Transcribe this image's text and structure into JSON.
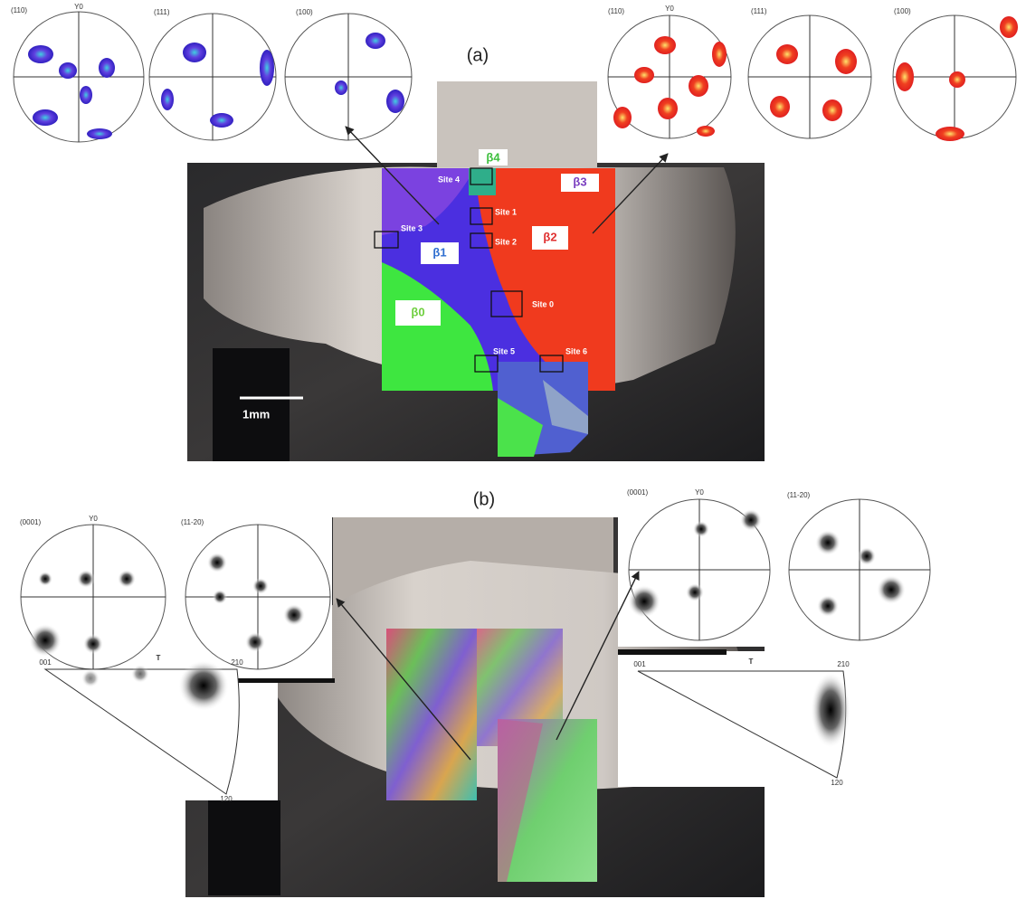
{
  "panel_a": {
    "label": "(a)",
    "left_pole_figures": [
      "(110)",
      "(111)",
      "(100)"
    ],
    "left_axis_label": "Y0",
    "right_pole_figures": [
      "(110)",
      "(111)",
      "(100)"
    ],
    "right_axis_label": "Y0",
    "grains": [
      "β4",
      "β3",
      "β1",
      "β2",
      "β0"
    ],
    "sites": [
      "Site 4",
      "Site 1",
      "Site 2",
      "Site 3",
      "Site 0",
      "Site 5",
      "Site 6"
    ],
    "scale_bar": "1mm"
  },
  "panel_b": {
    "label": "(b)",
    "left_pole_figures": [
      "(0001)",
      "(11-20)"
    ],
    "left_axis_label": "Y0",
    "right_pole_figures": [
      "(0001)",
      "(11-20)"
    ],
    "right_axis_label": "Y0",
    "left_inverse_pole_figure": {
      "title": "T",
      "corners": [
        "001",
        "210",
        "120"
      ]
    },
    "right_inverse_pole_figure": {
      "title": "T",
      "corners": [
        "001",
        "210",
        "120"
      ]
    }
  }
}
